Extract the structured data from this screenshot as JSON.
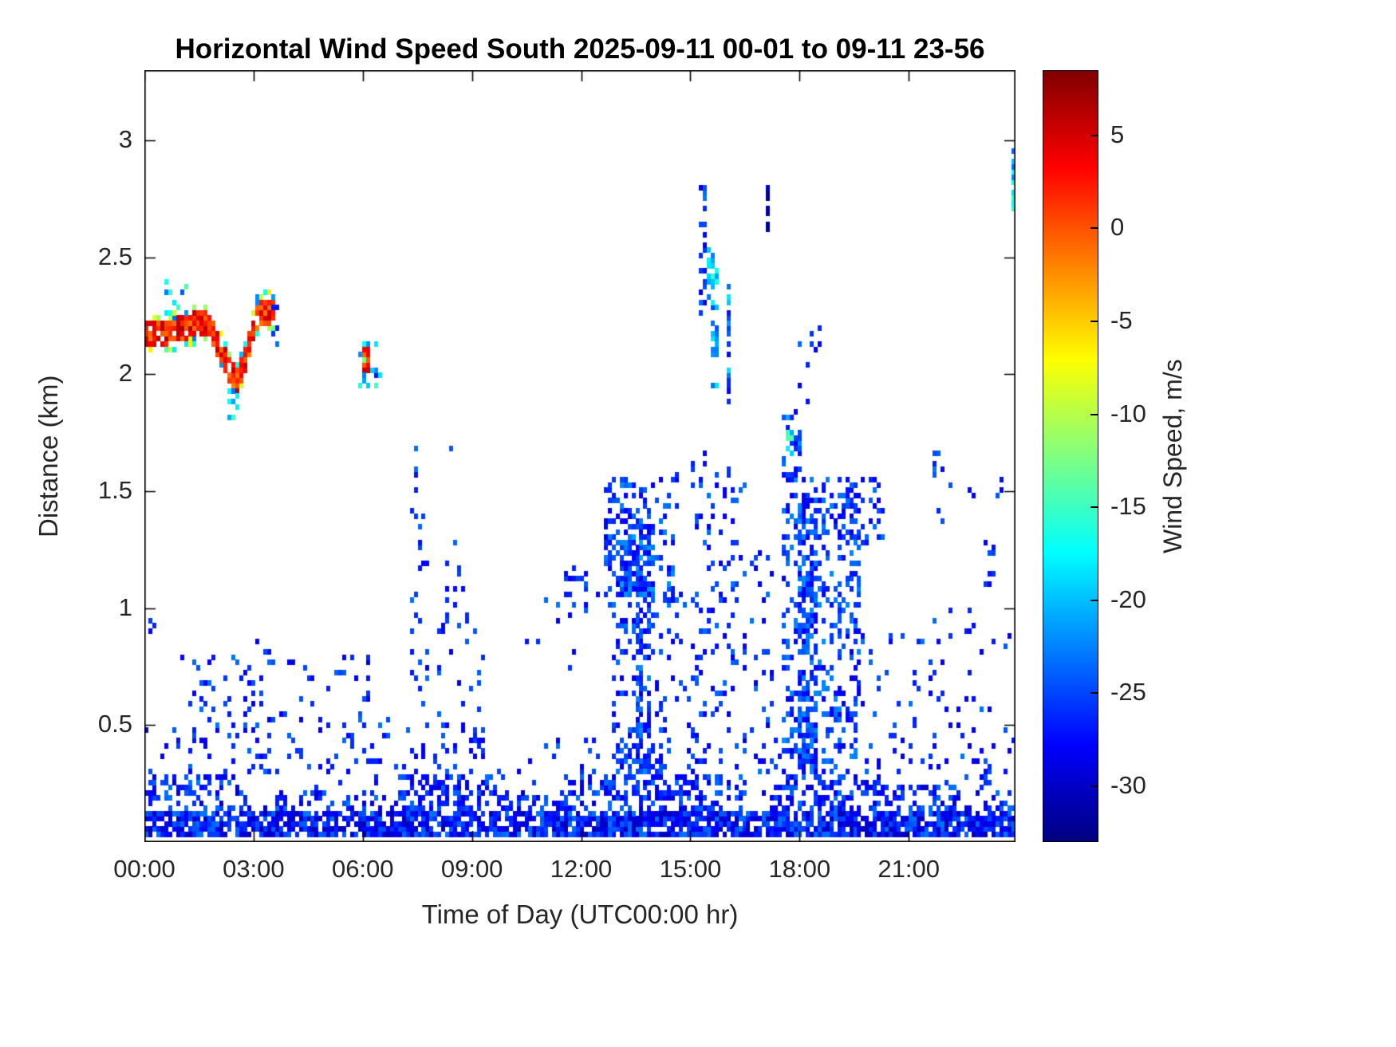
{
  "chart_data": {
    "type": "heatmap",
    "title": "Horizontal Wind Speed South 2025-09-11 00-01 to 09-11 23-56",
    "xlabel": "Time of Day (UTC00:00 hr)",
    "ylabel": "Distance (km)",
    "colorbar_label": "Wind Speed, m/s",
    "colormap": "jet",
    "grid": false,
    "legend": "colorbar-right",
    "xlim_hours": [
      0,
      23.933
    ],
    "ylim": [
      0,
      3.3
    ],
    "clim": [
      -33,
      8.5
    ],
    "x_ticks": [
      {
        "hour": 0,
        "label": "00:00"
      },
      {
        "hour": 3,
        "label": "03:00"
      },
      {
        "hour": 6,
        "label": "06:00"
      },
      {
        "hour": 9,
        "label": "09:00"
      },
      {
        "hour": 12,
        "label": "12:00"
      },
      {
        "hour": 15,
        "label": "15:00"
      },
      {
        "hour": 18,
        "label": "18:00"
      },
      {
        "hour": 21,
        "label": "21:00"
      }
    ],
    "y_ticks": [
      {
        "value": 0.5,
        "label": "0.5"
      },
      {
        "value": 1,
        "label": "1"
      },
      {
        "value": 1.5,
        "label": "1.5"
      },
      {
        "value": 2,
        "label": "2"
      },
      {
        "value": 2.5,
        "label": "2.5"
      },
      {
        "value": 3,
        "label": "3"
      }
    ],
    "colorbar_ticks": [
      {
        "value": 5,
        "label": "5"
      },
      {
        "value": 0,
        "label": "0"
      },
      {
        "value": -5,
        "label": "-5"
      },
      {
        "value": -10,
        "label": "-10"
      },
      {
        "value": -15,
        "label": "-15"
      },
      {
        "value": -20,
        "label": "-20"
      },
      {
        "value": -25,
        "label": "-25"
      },
      {
        "value": -30,
        "label": "-30"
      }
    ],
    "cell_hours": 0.10879,
    "cell_km": 0.0223,
    "seed": 20250911,
    "features": [
      {
        "kind": "band",
        "centerline": [
          [
            0,
            2.17
          ],
          [
            0.6,
            2.18
          ],
          [
            1.2,
            2.21
          ],
          [
            1.7,
            2.22
          ],
          [
            2.0,
            2.12
          ],
          [
            2.3,
            2.02
          ],
          [
            2.5,
            1.97
          ],
          [
            2.7,
            2.05
          ],
          [
            2.9,
            2.18
          ],
          [
            3.1,
            2.27
          ],
          [
            3.45,
            2.27
          ]
        ],
        "halfwidth": 0.085,
        "v_core": [
          -2,
          6.5
        ],
        "v_edge": [
          -24,
          -6
        ]
      },
      {
        "kind": "rect",
        "t": [
          0.55,
          1.25
        ],
        "d": [
          2.28,
          2.4
        ],
        "density": 0.22,
        "v": [
          -26,
          -13
        ]
      },
      {
        "kind": "rect",
        "t": [
          2.3,
          2.6
        ],
        "d": [
          1.8,
          1.96
        ],
        "density": 0.35,
        "v": [
          -24,
          -12
        ]
      },
      {
        "kind": "rect",
        "t": [
          3.4,
          3.8
        ],
        "d": [
          2.08,
          2.3
        ],
        "density": 0.18,
        "v": [
          -28,
          -20
        ]
      },
      {
        "kind": "rect",
        "t": [
          5.95,
          6.2
        ],
        "d": [
          2.0,
          2.13
        ],
        "density": 0.8,
        "v": [
          -1,
          6
        ]
      },
      {
        "kind": "rect",
        "t": [
          5.88,
          6.55
        ],
        "d": [
          1.95,
          2.14
        ],
        "density": 0.38,
        "v": [
          -27,
          -10
        ]
      },
      {
        "kind": "rect",
        "t": [
          15.25,
          15.45
        ],
        "d": [
          2.25,
          2.82
        ],
        "density": 0.55,
        "v": [
          -30,
          -23
        ]
      },
      {
        "kind": "rect",
        "t": [
          15.4,
          15.65
        ],
        "d": [
          2.3,
          2.55
        ],
        "density": 0.5,
        "v": [
          -23,
          -15
        ]
      },
      {
        "kind": "rect",
        "t": [
          15.55,
          15.8
        ],
        "d": [
          1.95,
          2.45
        ],
        "density": 0.5,
        "v": [
          -25,
          -15
        ]
      },
      {
        "kind": "rect",
        "t": [
          15.95,
          16.15
        ],
        "d": [
          1.88,
          2.42
        ],
        "density": 0.45,
        "v": [
          -28,
          -18
        ]
      },
      {
        "kind": "rect",
        "t": [
          17.05,
          17.2
        ],
        "d": [
          2.6,
          2.8
        ],
        "density": 0.75,
        "v": [
          -33,
          -29
        ]
      },
      {
        "kind": "rect",
        "t": [
          23.78,
          23.93
        ],
        "d": [
          2.7,
          2.97
        ],
        "density": 0.7,
        "v": [
          -24,
          -15
        ]
      },
      {
        "kind": "rect",
        "t": [
          0.1,
          0.3
        ],
        "d": [
          0.86,
          0.95
        ],
        "density": 0.5,
        "v": [
          -28,
          -24
        ]
      },
      {
        "kind": "rect",
        "t": [
          0,
          23.93
        ],
        "d": [
          0.02,
          0.14
        ],
        "density": 0.82,
        "v": [
          -31,
          -23
        ]
      },
      {
        "kind": "rect",
        "t": [
          0,
          2.6
        ],
        "d": [
          0.14,
          0.3
        ],
        "density": 0.4,
        "v": [
          -30,
          -23
        ]
      },
      {
        "kind": "rect",
        "t": [
          2.6,
          7.0
        ],
        "d": [
          0.14,
          0.22
        ],
        "density": 0.28,
        "v": [
          -30,
          -23
        ]
      },
      {
        "kind": "rect",
        "t": [
          7.0,
          9.6
        ],
        "d": [
          0.14,
          0.3
        ],
        "density": 0.42,
        "v": [
          -30,
          -23
        ]
      },
      {
        "kind": "rect",
        "t": [
          9.6,
          11.5
        ],
        "d": [
          0.14,
          0.22
        ],
        "density": 0.3,
        "v": [
          -30,
          -23
        ]
      },
      {
        "kind": "rect",
        "t": [
          11.5,
          16.5
        ],
        "d": [
          0.14,
          0.3
        ],
        "density": 0.45,
        "v": [
          -30,
          -23
        ]
      },
      {
        "kind": "rect",
        "t": [
          12.9,
          14.2
        ],
        "d": [
          0.3,
          0.42
        ],
        "density": 0.4,
        "v": [
          -29,
          -23
        ]
      },
      {
        "kind": "rect",
        "t": [
          17.2,
          20.2
        ],
        "d": [
          0.14,
          0.28
        ],
        "density": 0.4,
        "v": [
          -30,
          -23
        ]
      },
      {
        "kind": "rect",
        "t": [
          20.2,
          23.93
        ],
        "d": [
          0.14,
          0.24
        ],
        "density": 0.3,
        "v": [
          -30,
          -23
        ]
      },
      {
        "kind": "rect",
        "t": [
          0,
          23.93
        ],
        "d": [
          0.2,
          0.48
        ],
        "density": 0.05,
        "v": [
          -29,
          -23
        ]
      },
      {
        "kind": "rect",
        "t": [
          0.9,
          2.1
        ],
        "d": [
          0.3,
          0.8
        ],
        "density": 0.07,
        "v": [
          -29,
          -23
        ]
      },
      {
        "kind": "rect",
        "t": [
          2.2,
          3.5
        ],
        "d": [
          0.3,
          0.9
        ],
        "density": 0.09,
        "v": [
          -29,
          -23
        ]
      },
      {
        "kind": "rect",
        "t": [
          3.5,
          4.4
        ],
        "d": [
          0.3,
          0.78
        ],
        "density": 0.07,
        "v": [
          -29,
          -23
        ]
      },
      {
        "kind": "rect",
        "t": [
          4.4,
          6.7
        ],
        "d": [
          0.3,
          0.8
        ],
        "density": 0.05,
        "v": [
          -29,
          -23
        ]
      },
      {
        "kind": "rect",
        "t": [
          5.85,
          6.15
        ],
        "d": [
          0.3,
          0.8
        ],
        "density": 0.14,
        "v": [
          -29,
          -23
        ]
      },
      {
        "kind": "rect",
        "t": [
          7.25,
          7.8
        ],
        "d": [
          0.3,
          1.45
        ],
        "density": 0.12,
        "v": [
          -29,
          -23
        ]
      },
      {
        "kind": "rect",
        "t": [
          7.35,
          7.7
        ],
        "d": [
          1.45,
          1.73
        ],
        "density": 0.12,
        "v": [
          -29,
          -23
        ]
      },
      {
        "kind": "rect",
        "t": [
          8.0,
          9.4
        ],
        "d": [
          0.3,
          1.0
        ],
        "density": 0.1,
        "v": [
          -29,
          -23
        ]
      },
      {
        "kind": "rect",
        "t": [
          8.3,
          8.9
        ],
        "d": [
          1.0,
          1.3
        ],
        "density": 0.08,
        "v": [
          -29,
          -23
        ]
      },
      {
        "kind": "rect",
        "t": [
          8.35,
          8.55
        ],
        "d": [
          1.65,
          1.75
        ],
        "density": 0.3,
        "v": [
          -28,
          -24
        ]
      },
      {
        "kind": "rect",
        "t": [
          10.3,
          11.4
        ],
        "d": [
          0.85,
          1.05
        ],
        "density": 0.1,
        "v": [
          -29,
          -23
        ]
      },
      {
        "kind": "rect",
        "t": [
          11.4,
          12.6
        ],
        "d": [
          0.95,
          1.18
        ],
        "density": 0.16,
        "v": [
          -29,
          -23
        ]
      },
      {
        "kind": "rect",
        "t": [
          11.6,
          11.85
        ],
        "d": [
          0.7,
          0.95
        ],
        "density": 0.15,
        "v": [
          -29,
          -23
        ]
      },
      {
        "kind": "rect",
        "t": [
          12.6,
          14.6
        ],
        "d": [
          1.0,
          1.55
        ],
        "density": 0.3,
        "v": [
          -29,
          -22
        ]
      },
      {
        "kind": "rect",
        "t": [
          13.1,
          14.0
        ],
        "d": [
          1.05,
          1.35
        ],
        "density": 0.62,
        "v": [
          -29,
          -21
        ]
      },
      {
        "kind": "rect",
        "t": [
          12.8,
          14.3
        ],
        "d": [
          0.28,
          1.0
        ],
        "density": 0.22,
        "v": [
          -29,
          -23
        ]
      },
      {
        "kind": "rect",
        "t": [
          13.5,
          13.95
        ],
        "d": [
          0.3,
          1.0
        ],
        "density": 0.4,
        "v": [
          -29,
          -22
        ]
      },
      {
        "kind": "rect",
        "t": [
          14.3,
          15.2
        ],
        "d": [
          0.28,
          1.1
        ],
        "density": 0.13,
        "v": [
          -29,
          -23
        ]
      },
      {
        "kind": "rect",
        "t": [
          14.6,
          15.4
        ],
        "d": [
          1.4,
          1.65
        ],
        "density": 0.12,
        "v": [
          -29,
          -23
        ]
      },
      {
        "kind": "rect",
        "t": [
          15.1,
          15.6
        ],
        "d": [
          0.3,
          1.7
        ],
        "density": 0.16,
        "v": [
          -29,
          -23
        ]
      },
      {
        "kind": "rect",
        "t": [
          15.6,
          16.5
        ],
        "d": [
          0.28,
          1.6
        ],
        "density": 0.14,
        "v": [
          -29,
          -23
        ]
      },
      {
        "kind": "rect",
        "t": [
          16.5,
          17.4
        ],
        "d": [
          0.28,
          1.25
        ],
        "density": 0.08,
        "v": [
          -29,
          -23
        ]
      },
      {
        "kind": "rect",
        "t": [
          17.5,
          19.7
        ],
        "d": [
          0.28,
          1.55
        ],
        "density": 0.28,
        "v": [
          -29,
          -22
        ]
      },
      {
        "kind": "rect",
        "t": [
          17.9,
          18.45
        ],
        "d": [
          0.3,
          1.5
        ],
        "density": 0.45,
        "v": [
          -29,
          -22
        ]
      },
      {
        "kind": "rect",
        "t": [
          17.55,
          18.05
        ],
        "d": [
          1.55,
          1.85
        ],
        "density": 0.35,
        "v": [
          -28,
          -22
        ]
      },
      {
        "kind": "rect",
        "t": [
          17.6,
          17.8
        ],
        "d": [
          1.6,
          1.82
        ],
        "density": 0.5,
        "v": [
          -21,
          -13
        ]
      },
      {
        "kind": "rect",
        "t": [
          18.0,
          18.55
        ],
        "d": [
          1.85,
          2.25
        ],
        "density": 0.13,
        "v": [
          -29,
          -23
        ]
      },
      {
        "kind": "rect",
        "t": [
          19.3,
          20.3
        ],
        "d": [
          1.28,
          1.55
        ],
        "density": 0.2,
        "v": [
          -29,
          -23
        ]
      },
      {
        "kind": "rect",
        "t": [
          19.7,
          21.0
        ],
        "d": [
          0.28,
          0.9
        ],
        "density": 0.07,
        "v": [
          -29,
          -23
        ]
      },
      {
        "kind": "rect",
        "t": [
          21.0,
          23.9
        ],
        "d": [
          0.25,
          1.0
        ],
        "density": 0.06,
        "v": [
          -29,
          -23
        ]
      },
      {
        "kind": "rect",
        "t": [
          21.5,
          22.2
        ],
        "d": [
          1.35,
          1.68
        ],
        "density": 0.12,
        "v": [
          -29,
          -23
        ]
      },
      {
        "kind": "rect",
        "t": [
          22.5,
          23.0
        ],
        "d": [
          1.4,
          1.52
        ],
        "density": 0.25,
        "v": [
          -29,
          -24
        ]
      },
      {
        "kind": "rect",
        "t": [
          23.4,
          23.6
        ],
        "d": [
          1.45,
          1.55
        ],
        "density": 0.3,
        "v": [
          -29,
          -24
        ]
      },
      {
        "kind": "rect",
        "t": [
          23.1,
          23.35
        ],
        "d": [
          1.1,
          1.3
        ],
        "density": 0.15,
        "v": [
          -29,
          -24
        ]
      }
    ]
  }
}
